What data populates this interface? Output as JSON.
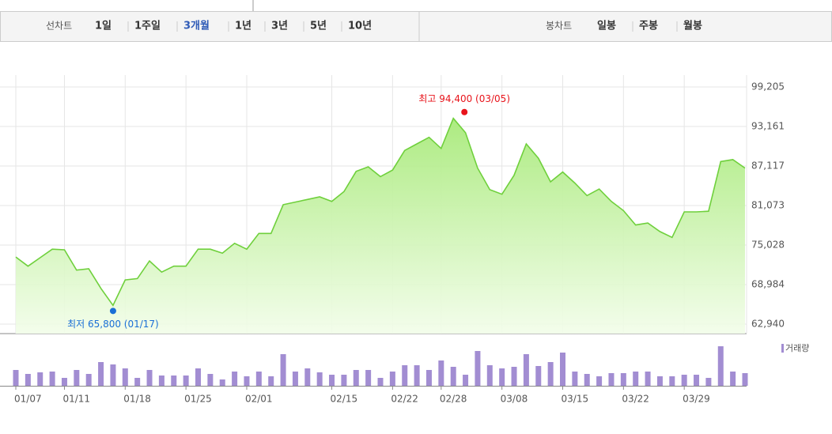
{
  "toolbar": {
    "line_label": "선차트",
    "periods": [
      "1일",
      "1주일",
      "3개월",
      "1년",
      "3년",
      "5년",
      "10년"
    ],
    "selected": 2,
    "candle_label": "봉차트",
    "candles": [
      "일봉",
      "주봉",
      "월봉"
    ]
  },
  "chart_data": [
    {
      "type": "line",
      "color": "#6fd03c",
      "values": [
        73200,
        71800,
        73100,
        74400,
        74300,
        71200,
        71400,
        68400,
        65800,
        69700,
        69900,
        72600,
        70900,
        71800,
        71800,
        74400,
        74400,
        73800,
        75300,
        74400,
        76800,
        76800,
        81200,
        81600,
        82000,
        82400,
        81700,
        83200,
        86300,
        87000,
        85500,
        86500,
        89500,
        90500,
        91500,
        89800,
        94400,
        92200,
        86800,
        83500,
        82800,
        85700,
        90500,
        88300,
        84700,
        86200,
        84500,
        82600,
        83600,
        81700,
        80300,
        78100,
        78400,
        77100,
        76200,
        80100,
        80100,
        80200,
        87800,
        88100,
        86800
      ],
      "ylim": [
        62940,
        99205
      ],
      "yticks": [
        {
          "value": 62940,
          "label": "62,940"
        },
        {
          "value": 68984,
          "label": "68,984"
        },
        {
          "value": 75028,
          "label": "75,028"
        },
        {
          "value": 81073,
          "label": "81,073"
        },
        {
          "value": 87117,
          "label": "87,117"
        },
        {
          "value": 93161,
          "label": "93,161"
        },
        {
          "value": 99205,
          "label": "99,205"
        }
      ],
      "grid": true,
      "high_label": "최고 94,400 (03/05)",
      "high_color": "#e8141b",
      "low_label": "최저 65,800 (01/17)",
      "low_color": "#1a6fd6"
    },
    {
      "type": "bar",
      "categories": [
        "01/07",
        null,
        null,
        null,
        "01/11",
        null,
        null,
        null,
        null,
        "01/18",
        null,
        null,
        null,
        null,
        "01/25",
        null,
        null,
        null,
        null,
        "02/01",
        null,
        null,
        null,
        null,
        null,
        null,
        "02/15",
        null,
        null,
        null,
        null,
        "02/22",
        null,
        null,
        null,
        "02/28",
        null,
        null,
        null,
        null,
        "03/08",
        null,
        null,
        null,
        null,
        "03/15",
        null,
        null,
        null,
        null,
        "03/22",
        null,
        null,
        null,
        null,
        "03/29",
        null,
        null,
        null,
        null,
        null
      ],
      "series": [
        {
          "name": "거래량",
          "color": "#a28dd2",
          "values": [
            20,
            15,
            17,
            18,
            10,
            20,
            15,
            30,
            27,
            22,
            10,
            20,
            13,
            13,
            13,
            22,
            15,
            8,
            18,
            12,
            18,
            12,
            40,
            18,
            22,
            17,
            14,
            14,
            20,
            20,
            10,
            18,
            26,
            26,
            20,
            32,
            24,
            14,
            44,
            26,
            22,
            24,
            40,
            25,
            30,
            42,
            18,
            15,
            12,
            16,
            16,
            18,
            18,
            12,
            12,
            14,
            14,
            10,
            50,
            18,
            16
          ]
        }
      ],
      "ylim": [
        0,
        58
      ]
    }
  ]
}
